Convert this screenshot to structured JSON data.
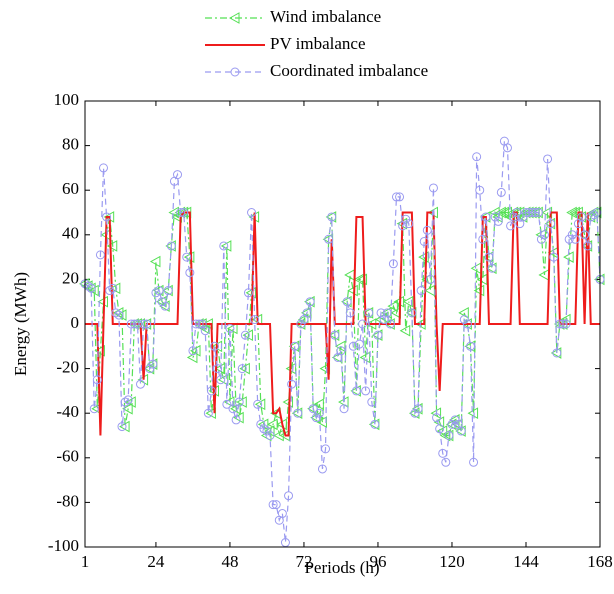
{
  "chart_data": {
    "type": "line",
    "x_label": "Periods (h)",
    "y_label": "Energy (MWh)",
    "x": [
      1,
      2,
      3,
      4,
      5,
      6,
      7,
      8,
      9,
      10,
      11,
      12,
      13,
      14,
      15,
      16,
      17,
      18,
      19,
      20,
      21,
      22,
      23,
      24,
      25,
      26,
      27,
      28,
      29,
      30,
      31,
      32,
      33,
      34,
      35,
      36,
      37,
      38,
      39,
      40,
      41,
      42,
      43,
      44,
      45,
      46,
      47,
      48,
      49,
      50,
      51,
      52,
      53,
      54,
      55,
      56,
      57,
      58,
      59,
      60,
      61,
      62,
      63,
      64,
      65,
      66,
      67,
      68,
      69,
      70,
      71,
      72,
      73,
      74,
      75,
      76,
      77,
      78,
      79,
      80,
      81,
      82,
      83,
      84,
      85,
      86,
      87,
      88,
      89,
      90,
      91,
      92,
      93,
      94,
      95,
      96,
      97,
      98,
      99,
      100,
      101,
      102,
      103,
      104,
      105,
      106,
      107,
      108,
      109,
      110,
      111,
      112,
      113,
      114,
      115,
      116,
      117,
      118,
      119,
      120,
      121,
      122,
      123,
      124,
      125,
      126,
      127,
      128,
      129,
      130,
      131,
      132,
      133,
      134,
      135,
      136,
      137,
      138,
      139,
      140,
      141,
      142,
      143,
      144,
      145,
      146,
      147,
      148,
      149,
      150,
      151,
      152,
      153,
      154,
      155,
      156,
      157,
      158,
      159,
      160,
      161,
      162,
      163,
      164,
      165,
      166,
      167,
      168
    ],
    "series": [
      {
        "name": "Wind imbalance",
        "color": "#55e055",
        "dash": "7 3 2 3",
        "marker": "triangle-left",
        "values": [
          18,
          17,
          16,
          15,
          -38,
          -12,
          10,
          40,
          48,
          35,
          16,
          5,
          4,
          -46,
          -38,
          -35,
          0,
          0,
          0,
          -25,
          0,
          -20,
          -18,
          28,
          15,
          10,
          8,
          15,
          35,
          50,
          48,
          50,
          50,
          50,
          30,
          -15,
          -12,
          0,
          0,
          -2,
          0,
          -40,
          -30,
          -10,
          -20,
          -25,
          35,
          -35,
          -2,
          -38,
          -42,
          -35,
          -20,
          -5,
          14,
          48,
          2,
          -36,
          -45,
          -50,
          -48,
          -45,
          -40,
          -50,
          -45,
          -50,
          -35,
          -20,
          -10,
          -40,
          0,
          2,
          5,
          10,
          -38,
          -42,
          -36,
          -44,
          -20,
          38,
          48,
          -5,
          -15,
          -10,
          -35,
          10,
          22,
          15,
          -30,
          20,
          20,
          -15,
          5,
          0,
          -45,
          -5,
          2,
          3,
          5,
          0,
          8,
          5,
          10,
          45,
          -3,
          10,
          5,
          -40,
          -38,
          0,
          30,
          20,
          15,
          50,
          -40,
          -44,
          -48,
          -50,
          -50,
          -45,
          -43,
          -45,
          -48,
          5,
          0,
          -10,
          -40,
          25,
          15,
          20,
          48,
          30,
          25,
          50,
          48,
          50,
          50,
          50,
          48,
          50,
          50,
          50,
          48,
          50,
          50,
          50,
          50,
          50,
          40,
          22,
          50,
          45,
          32,
          -13,
          0,
          0,
          2,
          30,
          50,
          50,
          50,
          48,
          40,
          35,
          48,
          50,
          50,
          20
        ]
      },
      {
        "name": "PV imbalance",
        "color": "#ee1c1c",
        "dash": "",
        "marker": "none",
        "values": [
          0,
          0,
          0,
          0,
          0,
          -50,
          0,
          48,
          48,
          0,
          0,
          0,
          0,
          0,
          0,
          0,
          0,
          0,
          0,
          -25,
          0,
          0,
          0,
          0,
          0,
          0,
          0,
          0,
          0,
          0,
          0,
          48,
          50,
          50,
          50,
          0,
          0,
          0,
          0,
          0,
          0,
          0,
          -40,
          0,
          0,
          0,
          0,
          0,
          0,
          0,
          0,
          0,
          0,
          0,
          0,
          50,
          0,
          0,
          0,
          0,
          0,
          -40,
          -40,
          -38,
          -45,
          -50,
          -50,
          0,
          0,
          0,
          0,
          0,
          0,
          0,
          0,
          0,
          0,
          0,
          0,
          -25,
          38,
          0,
          0,
          0,
          0,
          0,
          0,
          0,
          48,
          48,
          48,
          0,
          0,
          0,
          0,
          0,
          0,
          0,
          0,
          0,
          0,
          0,
          0,
          50,
          50,
          50,
          50,
          0,
          0,
          0,
          0,
          50,
          50,
          50,
          0,
          -30,
          0,
          0,
          0,
          0,
          0,
          0,
          0,
          0,
          0,
          0,
          0,
          0,
          0,
          48,
          48,
          0,
          0,
          0,
          0,
          0,
          0,
          0,
          0,
          50,
          50,
          0,
          0,
          0,
          0,
          0,
          0,
          0,
          0,
          0,
          0,
          50,
          50,
          50,
          0,
          0,
          0,
          0,
          0,
          0,
          50,
          50,
          0,
          50,
          0,
          0,
          0,
          0
        ]
      },
      {
        "name": "Coordinated imbalance",
        "color": "#9a9af0",
        "dash": "6 4",
        "marker": "circle",
        "values": [
          18,
          17,
          16,
          -38,
          -25,
          31,
          70,
          48,
          15,
          16,
          5,
          4,
          -46,
          -35,
          -34,
          0,
          0,
          0,
          -27,
          0,
          0,
          -20,
          -18,
          14,
          15,
          10,
          8,
          15,
          35,
          64,
          67,
          50,
          50,
          30,
          23,
          -12,
          0,
          0,
          0,
          -3,
          -40,
          -30,
          -10,
          -20,
          -25,
          35,
          -36,
          -2,
          -38,
          -43,
          -35,
          -20,
          -5,
          14,
          50,
          2,
          -36,
          -45,
          -47,
          -48,
          -50,
          -81,
          -81,
          -88,
          -85,
          -98,
          -77,
          -27,
          -10,
          -40,
          0,
          2,
          5,
          10,
          -38,
          -42,
          -40,
          -65,
          -56,
          38,
          48,
          -5,
          -15,
          -12,
          -38,
          10,
          5,
          -10,
          -30,
          -9,
          0,
          -30,
          5,
          -35,
          -45,
          -5,
          5,
          2,
          5,
          0,
          27,
          57,
          57,
          44,
          47,
          45,
          5,
          -40,
          -38,
          15,
          37,
          42,
          20,
          61,
          -42,
          -47,
          -58,
          -62,
          -50,
          -45,
          -43,
          -45,
          -48,
          2,
          0,
          -10,
          -62,
          75,
          60,
          38,
          48,
          30,
          25,
          48,
          46,
          59,
          82,
          79,
          44,
          48,
          50,
          45,
          48,
          50,
          50,
          50,
          50,
          50,
          38,
          40,
          74,
          45,
          30,
          -13,
          0,
          0,
          0,
          38,
          40,
          38,
          45,
          48,
          40,
          35,
          48,
          49,
          50,
          20
        ]
      }
    ],
    "xlim": [
      1,
      168
    ],
    "xticks": [
      1,
      24,
      48,
      72,
      96,
      120,
      144,
      168
    ],
    "ylim": [
      -100,
      100
    ],
    "yticks": [
      -100,
      -80,
      -60,
      -40,
      -20,
      0,
      20,
      40,
      60,
      80,
      100
    ]
  }
}
